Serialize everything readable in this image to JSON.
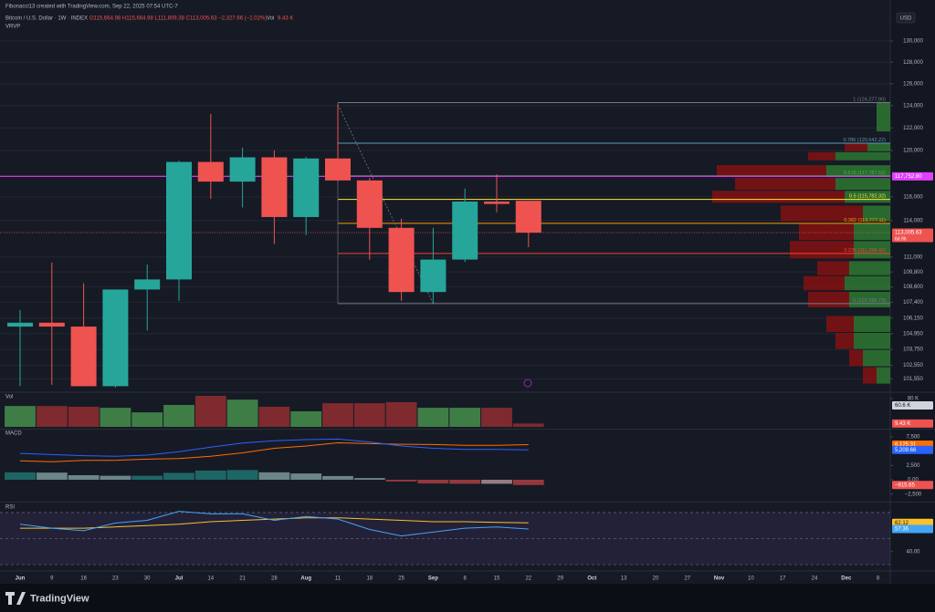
{
  "header": {
    "credit": "Fibonacci13 created with TradingView.com, Sep 22, 2025 07:54 UTC-7",
    "symbol": "Bitcoin / U.S. Dollar · 1W · INDEX",
    "ohlc": "O115,664.98 H115,664.98 L111,809.38 C113,005.63 −2,327.66 (−2.02%)",
    "vol_label": "Vol",
    "vol_value": "9.43 K",
    "indicator": "VRVP",
    "currency": "USD"
  },
  "footer": {
    "brand": "TradingView"
  },
  "chart_data": [
    {
      "type": "candlestick",
      "categories": [
        "Jun",
        "9",
        "16",
        "23",
        "30",
        "Jul",
        "14",
        "21",
        "28",
        "Aug",
        "11",
        "18",
        "25",
        "Sep",
        "8",
        "15",
        "22",
        "29",
        "Oct",
        "13",
        "20",
        "27",
        "Nov",
        "10",
        "17",
        "24",
        "Dec",
        "8"
      ],
      "open": [
        105500,
        105800,
        105500,
        101000,
        108400,
        109200,
        119000,
        117300,
        119400,
        114300,
        119300,
        117400,
        113400,
        108200,
        110800,
        115600,
        115664.98,
        null,
        null,
        null,
        null,
        null,
        null,
        null,
        null,
        null,
        null,
        null
      ],
      "high": [
        106800,
        110560,
        108900,
        108400,
        110400,
        119100,
        123250,
        120250,
        120000,
        119450,
        124100,
        117600,
        114160,
        113400,
        116700,
        117940,
        115664.98,
        null,
        null,
        null,
        null,
        null,
        null,
        null,
        null,
        null,
        null,
        null
      ],
      "low": [
        101000,
        101100,
        101000,
        100900,
        105200,
        107500,
        115840,
        115100,
        112070,
        112800,
        117300,
        110780,
        107500,
        107300,
        110600,
        114700,
        111809.38,
        null,
        null,
        null,
        null,
        null,
        null,
        null,
        null,
        null,
        null,
        null
      ],
      "close": [
        105800,
        105500,
        101000,
        108400,
        109200,
        119000,
        117300,
        119400,
        114300,
        119300,
        117400,
        113400,
        108200,
        110800,
        115600,
        115400,
        113005.63,
        null,
        null,
        null,
        null,
        null,
        null,
        null,
        null,
        null,
        null,
        null
      ],
      "up_color": "#26a69a",
      "down_color": "#ef5350",
      "log_scale": true,
      "grid": true,
      "ylim": [
        100760,
        132360
      ],
      "yticks": [
        {
          "value": 130000,
          "label": "130,000"
        },
        {
          "value": 128000,
          "label": "128,000"
        },
        {
          "value": 126000,
          "label": "126,000"
        },
        {
          "value": 124000,
          "label": "124,000"
        },
        {
          "value": 122000,
          "label": "122,000"
        },
        {
          "value": 120000,
          "label": "120,000"
        },
        {
          "value": 116000,
          "label": "116,000"
        },
        {
          "value": 114000,
          "label": "114,000"
        },
        {
          "value": 111000,
          "label": "111,000"
        },
        {
          "value": 109800,
          "label": "109,800"
        },
        {
          "value": 108600,
          "label": "108,600"
        },
        {
          "value": 107400,
          "label": "107,400"
        },
        {
          "value": 106150,
          "label": "106,150"
        },
        {
          "value": 104950,
          "label": "104,950"
        },
        {
          "value": 103750,
          "label": "103,750"
        },
        {
          "value": 102550,
          "label": "102,550"
        },
        {
          "value": 101550,
          "label": "101,550"
        }
      ],
      "horizontal_lines": [
        {
          "value": 117752.8,
          "label": "117,752.80",
          "color": "#e040fb"
        }
      ],
      "last_price": {
        "value": 113005.63,
        "label": "113,005.63",
        "countdown": "6d 9h",
        "color": "#ef5350"
      },
      "fib_levels": [
        {
          "value": 124277.9,
          "label": "1 (124,277.90)",
          "color": "#787b86"
        },
        {
          "value": 120642.22,
          "label": "0.786 (120,642.22)",
          "color": "#5b9cb6"
        },
        {
          "value": 117787.52,
          "label": "0.618 (117,787.52)",
          "color": "#4caf50"
        },
        {
          "value": 115782.32,
          "label": "0.5 (115,782.32)",
          "color": "#ffeb3b"
        },
        {
          "value": 113777.11,
          "label": "0.382 (113,777.11)",
          "color": "#ff9800"
        },
        {
          "value": 111296.42,
          "label": "0.236 (111,296.42)",
          "color": "#f44336"
        },
        {
          "value": 107286.73,
          "label": "0 (107,286.73)",
          "color": "#787b86"
        }
      ],
      "volume_profile": {
        "prices": [
          123000,
          120300,
          119500,
          118200,
          117100,
          116000,
          114600,
          113100,
          111600,
          110100,
          108900,
          107600,
          105700,
          104400,
          103100,
          101800
        ],
        "up": [
          15,
          25,
          60,
          70,
          60,
          50,
          30,
          40,
          40,
          45,
          50,
          45,
          40,
          40,
          30,
          15
        ],
        "down": [
          0,
          25,
          30,
          120,
          110,
          145,
          90,
          60,
          70,
          35,
          45,
          45,
          30,
          20,
          15,
          15
        ],
        "up_color": "#2e7d32",
        "down_color": "#8b1010"
      }
    },
    {
      "type": "volume",
      "title": "Vol",
      "values": [
        59,
        59,
        57,
        54,
        41,
        62,
        88,
        77,
        57,
        44,
        67,
        67,
        70,
        54,
        54,
        54,
        9.43,
        null,
        null,
        null,
        null,
        null,
        null,
        null,
        null,
        null,
        null,
        null
      ],
      "up_color": "#3f7d46",
      "down_color": "#7e2a2e",
      "ylim": [
        0,
        93
      ],
      "yticks": [
        {
          "value": 80,
          "label": "80 K"
        }
      ],
      "tags": [
        {
          "value": 60.6,
          "label": "60.6 K",
          "color": "#d1d4dc"
        },
        {
          "value": 9.43,
          "label": "9.43 K",
          "color": "#ef5350"
        }
      ]
    },
    {
      "type": "macd",
      "title": "MACD",
      "line": [
        4600,
        4400,
        4200,
        4100,
        4300,
        4900,
        5700,
        6400,
        6800,
        7000,
        7100,
        6600,
        5900,
        5500,
        5300,
        5300,
        5209.66,
        null,
        null,
        null,
        null,
        null,
        null,
        null,
        null,
        null,
        null,
        null
      ],
      "signal": [
        3300,
        3150,
        3400,
        3400,
        3600,
        3700,
        4100,
        4700,
        5500,
        5900,
        6450,
        6300,
        6200,
        6150,
        6000,
        6000,
        6125.31,
        null,
        null,
        null,
        null,
        null,
        null,
        null,
        null,
        null,
        null,
        null
      ],
      "histogram": [
        1300,
        1250,
        800,
        700,
        700,
        1200,
        1600,
        1700,
        1300,
        1100,
        650,
        300,
        -300,
        -650,
        -700,
        -700,
        -915.65,
        null,
        null,
        null,
        null,
        null,
        null,
        null,
        null,
        null,
        null,
        null
      ],
      "line_color": "#2962ff",
      "signal_color": "#ff6d00",
      "ylim": [
        -3500,
        8600
      ],
      "yticks": [
        {
          "value": 7500,
          "label": "7,500"
        },
        {
          "value": 2500,
          "label": "2,500"
        },
        {
          "value": 0,
          "label": "0.00"
        },
        {
          "value": -2500,
          "label": "−2,500"
        }
      ],
      "tags": [
        {
          "value": 6125.31,
          "label": "6,125.31",
          "color": "#ff6d00"
        },
        {
          "value": 5209.66,
          "label": "5,209.66",
          "color": "#2962ff"
        },
        {
          "value": -915.65,
          "label": "−915.65",
          "color": "#ef5350"
        }
      ]
    },
    {
      "type": "rsi",
      "title": "RSI",
      "values": [
        61,
        58,
        56,
        62,
        64,
        71,
        69,
        69,
        64,
        67,
        65,
        57,
        52,
        55,
        58,
        59,
        57.36,
        null,
        null,
        null,
        null,
        null,
        null,
        null,
        null,
        null,
        null,
        null
      ],
      "ma": [
        58,
        58,
        58,
        59,
        60,
        61,
        63,
        64,
        65,
        66,
        66,
        65,
        64,
        63,
        63,
        62.5,
        62.12,
        null,
        null,
        null,
        null,
        null,
        null,
        null,
        null,
        null,
        null,
        null
      ],
      "line_color": "#42a5f5",
      "ma_color": "#fbc02d",
      "bands": [
        70,
        50,
        30
      ],
      "ylim": [
        25.8,
        76.3
      ],
      "yticks": [
        {
          "value": 40,
          "label": "40.00"
        }
      ],
      "tags": [
        {
          "value": 62.12,
          "label": "62.12",
          "color": "#fbc02d"
        },
        {
          "value": 57.36,
          "label": "57.36",
          "color": "#42a5f5"
        }
      ]
    }
  ]
}
